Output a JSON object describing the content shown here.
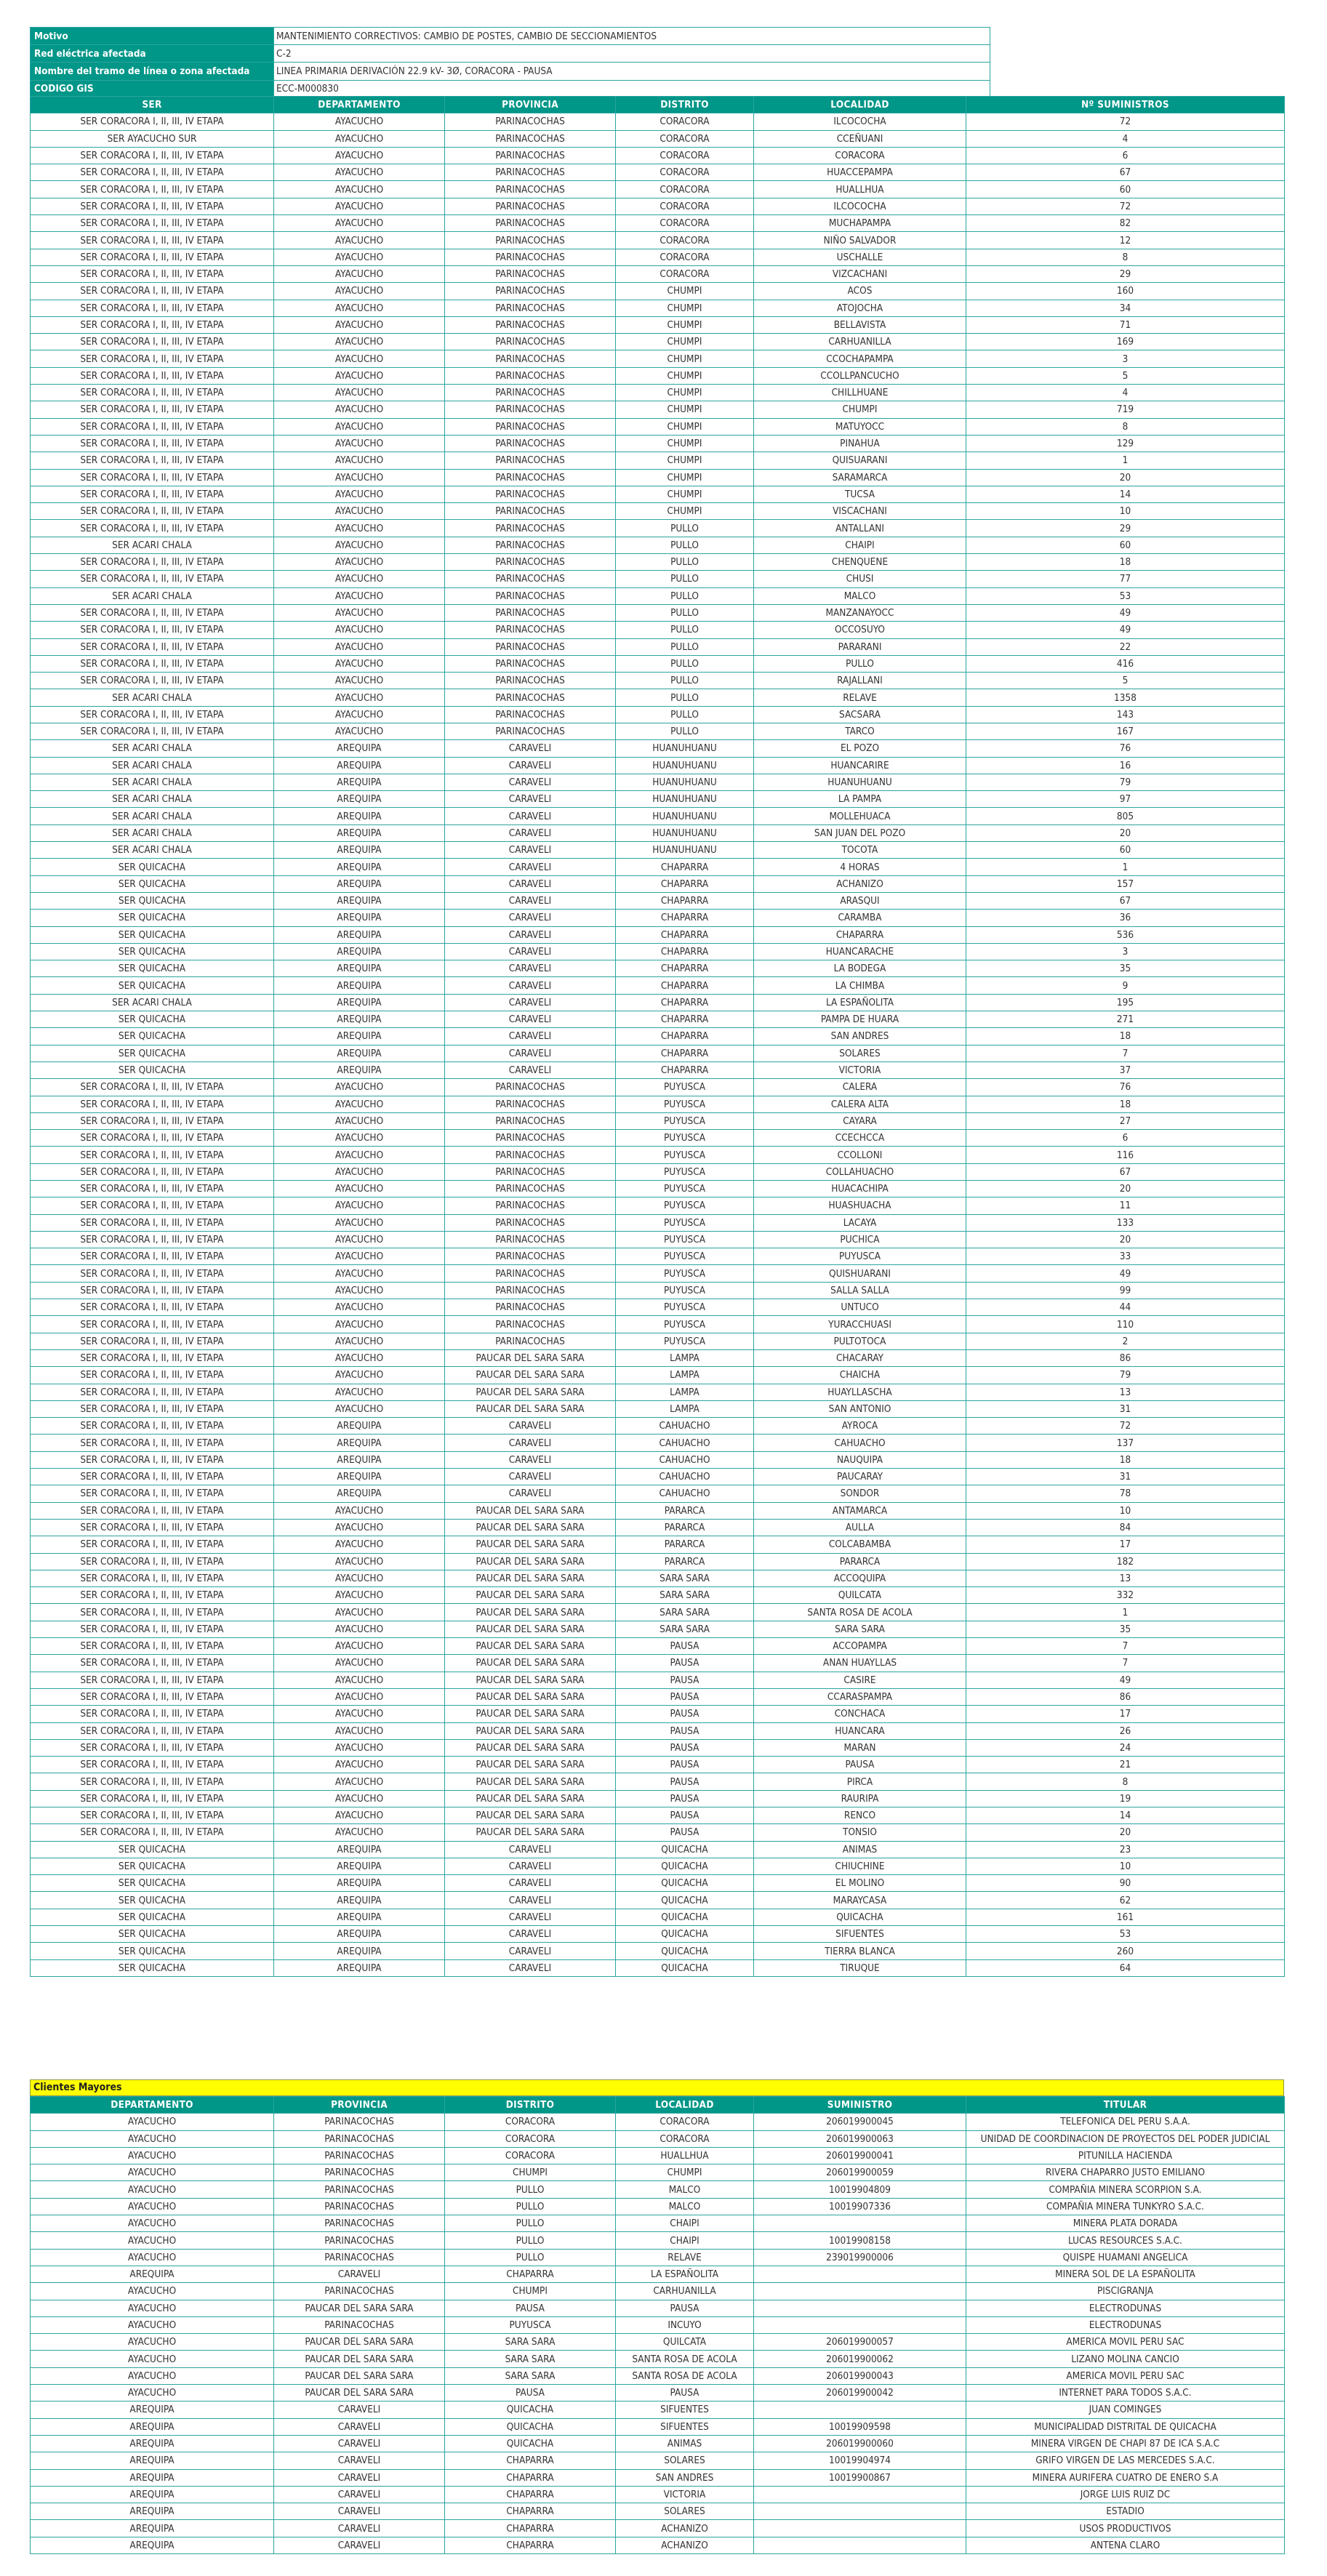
{
  "info": [
    {
      "label": "Motivo",
      "value": "MANTENIMIENTO CORRECTIVOS: CAMBIO DE POSTES, CAMBIO DE SECCIONAMIENTOS"
    },
    {
      "label": "Red eléctrica afectada",
      "value": "C-2"
    },
    {
      "label": "Nombre del tramo de línea o zona afectada",
      "value": "LINEA PRIMARIA DERIVACIÓN 22.9 kV- 3Ø, CORACORA - PAUSA"
    },
    {
      "label": "CODIGO GIS",
      "value": "ECC-M000830"
    }
  ],
  "main_headers": [
    "SER",
    "DEPARTAMENTO",
    "PROVINCIA",
    "DISTRITO",
    "LOCALIDAD",
    "Nº SUMINISTROS"
  ],
  "main_rows": [
    [
      "SER CORACORA I, II, III, IV ETAPA",
      "AYACUCHO",
      "PARINACOCHAS",
      "CORACORA",
      "ILCOCOCHA",
      "72"
    ],
    [
      "SER AYACUCHO SUR",
      "AYACUCHO",
      "PARINACOCHAS",
      "CORACORA",
      "CCEÑUANI",
      "4"
    ],
    [
      "SER CORACORA I, II, III, IV ETAPA",
      "AYACUCHO",
      "PARINACOCHAS",
      "CORACORA",
      "CORACORA",
      "6"
    ],
    [
      "SER CORACORA I, II, III, IV ETAPA",
      "AYACUCHO",
      "PARINACOCHAS",
      "CORACORA",
      "HUACCEPAMPA",
      "67"
    ],
    [
      "SER CORACORA I, II, III, IV ETAPA",
      "AYACUCHO",
      "PARINACOCHAS",
      "CORACORA",
      "HUALLHUA",
      "60"
    ],
    [
      "SER CORACORA I, II, III, IV ETAPA",
      "AYACUCHO",
      "PARINACOCHAS",
      "CORACORA",
      "ILCOCOCHA",
      "72"
    ],
    [
      "SER CORACORA I, II, III, IV ETAPA",
      "AYACUCHO",
      "PARINACOCHAS",
      "CORACORA",
      "MUCHAPAMPA",
      "82"
    ],
    [
      "SER CORACORA I, II, III, IV ETAPA",
      "AYACUCHO",
      "PARINACOCHAS",
      "CORACORA",
      "NIÑO SALVADOR",
      "12"
    ],
    [
      "SER CORACORA I, II, III, IV ETAPA",
      "AYACUCHO",
      "PARINACOCHAS",
      "CORACORA",
      "USCHALLE",
      "8"
    ],
    [
      "SER CORACORA I, II, III, IV ETAPA",
      "AYACUCHO",
      "PARINACOCHAS",
      "CORACORA",
      "VIZCACHANI",
      "29"
    ],
    [
      "SER CORACORA I, II, III, IV ETAPA",
      "AYACUCHO",
      "PARINACOCHAS",
      "CHUMPI",
      "ACOS",
      "160"
    ],
    [
      "SER CORACORA I, II, III, IV ETAPA",
      "AYACUCHO",
      "PARINACOCHAS",
      "CHUMPI",
      "ATOJOCHA",
      "34"
    ],
    [
      "SER CORACORA I, II, III, IV ETAPA",
      "AYACUCHO",
      "PARINACOCHAS",
      "CHUMPI",
      "BELLAVISTA",
      "71"
    ],
    [
      "SER CORACORA I, II, III, IV ETAPA",
      "AYACUCHO",
      "PARINACOCHAS",
      "CHUMPI",
      "CARHUANILLA",
      "169"
    ],
    [
      "SER CORACORA I, II, III, IV ETAPA",
      "AYACUCHO",
      "PARINACOCHAS",
      "CHUMPI",
      "CCOCHAPAMPA",
      "3"
    ],
    [
      "SER CORACORA I, II, III, IV ETAPA",
      "AYACUCHO",
      "PARINACOCHAS",
      "CHUMPI",
      "CCOLLPANCUCHO",
      "5"
    ],
    [
      "SER CORACORA I, II, III, IV ETAPA",
      "AYACUCHO",
      "PARINACOCHAS",
      "CHUMPI",
      "CHILLHUANE",
      "4"
    ],
    [
      "SER CORACORA I, II, III, IV ETAPA",
      "AYACUCHO",
      "PARINACOCHAS",
      "CHUMPI",
      "CHUMPI",
      "719"
    ],
    [
      "SER CORACORA I, II, III, IV ETAPA",
      "AYACUCHO",
      "PARINACOCHAS",
      "CHUMPI",
      "MATUYOCC",
      "8"
    ],
    [
      "SER CORACORA I, II, III, IV ETAPA",
      "AYACUCHO",
      "PARINACOCHAS",
      "CHUMPI",
      "PINAHUA",
      "129"
    ],
    [
      "SER CORACORA I, II, III, IV ETAPA",
      "AYACUCHO",
      "PARINACOCHAS",
      "CHUMPI",
      "QUISUARANI",
      "1"
    ],
    [
      "SER CORACORA I, II, III, IV ETAPA",
      "AYACUCHO",
      "PARINACOCHAS",
      "CHUMPI",
      "SARAMARCA",
      "20"
    ],
    [
      "SER CORACORA I, II, III, IV ETAPA",
      "AYACUCHO",
      "PARINACOCHAS",
      "CHUMPI",
      "TUCSA",
      "14"
    ],
    [
      "SER CORACORA I, II, III, IV ETAPA",
      "AYACUCHO",
      "PARINACOCHAS",
      "CHUMPI",
      "VISCACHANI",
      "10"
    ],
    [
      "SER CORACORA I, II, III, IV ETAPA",
      "AYACUCHO",
      "PARINACOCHAS",
      "PULLO",
      "ANTALLANI",
      "29"
    ],
    [
      "SER ACARI CHALA",
      "AYACUCHO",
      "PARINACOCHAS",
      "PULLO",
      "CHAIPI",
      "60"
    ],
    [
      "SER CORACORA I, II, III, IV ETAPA",
      "AYACUCHO",
      "PARINACOCHAS",
      "PULLO",
      "CHENQUENE",
      "18"
    ],
    [
      "SER CORACORA I, II, III, IV ETAPA",
      "AYACUCHO",
      "PARINACOCHAS",
      "PULLO",
      "CHUSI",
      "77"
    ],
    [
      "SER ACARI CHALA",
      "AYACUCHO",
      "PARINACOCHAS",
      "PULLO",
      "MALCO",
      "53"
    ],
    [
      "SER CORACORA I, II, III, IV ETAPA",
      "AYACUCHO",
      "PARINACOCHAS",
      "PULLO",
      "MANZANAYOCC",
      "49"
    ],
    [
      "SER CORACORA I, II, III, IV ETAPA",
      "AYACUCHO",
      "PARINACOCHAS",
      "PULLO",
      "OCCOSUYO",
      "49"
    ],
    [
      "SER CORACORA I, II, III, IV ETAPA",
      "AYACUCHO",
      "PARINACOCHAS",
      "PULLO",
      "PARARANI",
      "22"
    ],
    [
      "SER CORACORA I, II, III, IV ETAPA",
      "AYACUCHO",
      "PARINACOCHAS",
      "PULLO",
      "PULLO",
      "416"
    ],
    [
      "SER CORACORA I, II, III, IV ETAPA",
      "AYACUCHO",
      "PARINACOCHAS",
      "PULLO",
      "RAJALLANI",
      "5"
    ],
    [
      "SER ACARI CHALA",
      "AYACUCHO",
      "PARINACOCHAS",
      "PULLO",
      "RELAVE",
      "1358"
    ],
    [
      "SER CORACORA I, II, III, IV ETAPA",
      "AYACUCHO",
      "PARINACOCHAS",
      "PULLO",
      "SACSARA",
      "143"
    ],
    [
      "SER CORACORA I, II, III, IV ETAPA",
      "AYACUCHO",
      "PARINACOCHAS",
      "PULLO",
      "TARCO",
      "167"
    ],
    [
      "SER ACARI CHALA",
      "AREQUIPA",
      "CARAVELI",
      "HUANUHUANU",
      "EL POZO",
      "76"
    ],
    [
      "SER ACARI CHALA",
      "AREQUIPA",
      "CARAVELI",
      "HUANUHUANU",
      "HUANCARIRE",
      "16"
    ],
    [
      "SER ACARI CHALA",
      "AREQUIPA",
      "CARAVELI",
      "HUANUHUANU",
      "HUANUHUANU",
      "79"
    ],
    [
      "SER ACARI CHALA",
      "AREQUIPA",
      "CARAVELI",
      "HUANUHUANU",
      "LA PAMPA",
      "97"
    ],
    [
      "SER ACARI CHALA",
      "AREQUIPA",
      "CARAVELI",
      "HUANUHUANU",
      "MOLLEHUACA",
      "805"
    ],
    [
      "SER ACARI CHALA",
      "AREQUIPA",
      "CARAVELI",
      "HUANUHUANU",
      "SAN JUAN DEL POZO",
      "20"
    ],
    [
      "SER ACARI CHALA",
      "AREQUIPA",
      "CARAVELI",
      "HUANUHUANU",
      "TOCOTA",
      "60"
    ],
    [
      "SER QUICACHA",
      "AREQUIPA",
      "CARAVELI",
      "CHAPARRA",
      "4 HORAS",
      "1"
    ],
    [
      "SER QUICACHA",
      "AREQUIPA",
      "CARAVELI",
      "CHAPARRA",
      "ACHANIZO",
      "157"
    ],
    [
      "SER QUICACHA",
      "AREQUIPA",
      "CARAVELI",
      "CHAPARRA",
      "ARASQUI",
      "67"
    ],
    [
      "SER QUICACHA",
      "AREQUIPA",
      "CARAVELI",
      "CHAPARRA",
      "CARAMBA",
      "36"
    ],
    [
      "SER QUICACHA",
      "AREQUIPA",
      "CARAVELI",
      "CHAPARRA",
      "CHAPARRA",
      "536"
    ],
    [
      "SER QUICACHA",
      "AREQUIPA",
      "CARAVELI",
      "CHAPARRA",
      "HUANCARACHE",
      "3"
    ],
    [
      "SER QUICACHA",
      "AREQUIPA",
      "CARAVELI",
      "CHAPARRA",
      "LA BODEGA",
      "35"
    ],
    [
      "SER QUICACHA",
      "AREQUIPA",
      "CARAVELI",
      "CHAPARRA",
      "LA CHIMBA",
      "9"
    ],
    [
      "SER ACARI CHALA",
      "AREQUIPA",
      "CARAVELI",
      "CHAPARRA",
      "LA ESPAÑOLITA",
      "195"
    ],
    [
      "SER QUICACHA",
      "AREQUIPA",
      "CARAVELI",
      "CHAPARRA",
      "PAMPA DE HUARA",
      "271"
    ],
    [
      "SER QUICACHA",
      "AREQUIPA",
      "CARAVELI",
      "CHAPARRA",
      "SAN ANDRES",
      "18"
    ],
    [
      "SER QUICACHA",
      "AREQUIPA",
      "CARAVELI",
      "CHAPARRA",
      "SOLARES",
      "7"
    ],
    [
      "SER QUICACHA",
      "AREQUIPA",
      "CARAVELI",
      "CHAPARRA",
      "VICTORIA",
      "37"
    ],
    [
      "SER CORACORA I, II, III, IV ETAPA",
      "AYACUCHO",
      "PARINACOCHAS",
      "PUYUSCA",
      "CALERA",
      "76"
    ],
    [
      "SER CORACORA I, II, III, IV ETAPA",
      "AYACUCHO",
      "PARINACOCHAS",
      "PUYUSCA",
      "CALERA ALTA",
      "18"
    ],
    [
      "SER CORACORA I, II, III, IV ETAPA",
      "AYACUCHO",
      "PARINACOCHAS",
      "PUYUSCA",
      "CAYARA",
      "27"
    ],
    [
      "SER CORACORA I, II, III, IV ETAPA",
      "AYACUCHO",
      "PARINACOCHAS",
      "PUYUSCA",
      "CCECHCCA",
      "6"
    ],
    [
      "SER CORACORA I, II, III, IV ETAPA",
      "AYACUCHO",
      "PARINACOCHAS",
      "PUYUSCA",
      "CCOLLONI",
      "116"
    ],
    [
      "SER CORACORA I, II, III, IV ETAPA",
      "AYACUCHO",
      "PARINACOCHAS",
      "PUYUSCA",
      "COLLAHUACHO",
      "67"
    ],
    [
      "SER CORACORA I, II, III, IV ETAPA",
      "AYACUCHO",
      "PARINACOCHAS",
      "PUYUSCA",
      "HUACACHIPA",
      "20"
    ],
    [
      "SER CORACORA I, II, III, IV ETAPA",
      "AYACUCHO",
      "PARINACOCHAS",
      "PUYUSCA",
      "HUASHUACHA",
      "11"
    ],
    [
      "SER CORACORA I, II, III, IV ETAPA",
      "AYACUCHO",
      "PARINACOCHAS",
      "PUYUSCA",
      "LACAYA",
      "133"
    ],
    [
      "SER CORACORA I, II, III, IV ETAPA",
      "AYACUCHO",
      "PARINACOCHAS",
      "PUYUSCA",
      "PUCHICA",
      "20"
    ],
    [
      "SER CORACORA I, II, III, IV ETAPA",
      "AYACUCHO",
      "PARINACOCHAS",
      "PUYUSCA",
      "PUYUSCA",
      "33"
    ],
    [
      "SER CORACORA I, II, III, IV ETAPA",
      "AYACUCHO",
      "PARINACOCHAS",
      "PUYUSCA",
      "QUISHUARANI",
      "49"
    ],
    [
      "SER CORACORA I, II, III, IV ETAPA",
      "AYACUCHO",
      "PARINACOCHAS",
      "PUYUSCA",
      "SALLA SALLA",
      "99"
    ],
    [
      "SER CORACORA I, II, III, IV ETAPA",
      "AYACUCHO",
      "PARINACOCHAS",
      "PUYUSCA",
      "UNTUCO",
      "44"
    ],
    [
      "SER CORACORA I, II, III, IV ETAPA",
      "AYACUCHO",
      "PARINACOCHAS",
      "PUYUSCA",
      "YURACCHUASI",
      "110"
    ],
    [
      "SER CORACORA I, II, III, IV ETAPA",
      "AYACUCHO",
      "PARINACOCHAS",
      "PUYUSCA",
      "PULTOTOCA",
      "2"
    ],
    [
      "SER CORACORA I, II, III, IV ETAPA",
      "AYACUCHO",
      "PAUCAR DEL SARA SARA",
      "LAMPA",
      "CHACARAY",
      "86"
    ],
    [
      "SER CORACORA I, II, III, IV ETAPA",
      "AYACUCHO",
      "PAUCAR DEL SARA SARA",
      "LAMPA",
      "CHAICHA",
      "79"
    ],
    [
      "SER CORACORA I, II, III, IV ETAPA",
      "AYACUCHO",
      "PAUCAR DEL SARA SARA",
      "LAMPA",
      "HUAYLLASCHA",
      "13"
    ],
    [
      "SER CORACORA I, II, III, IV ETAPA",
      "AYACUCHO",
      "PAUCAR DEL SARA SARA",
      "LAMPA",
      "SAN ANTONIO",
      "31"
    ],
    [
      "SER CORACORA I, II, III, IV ETAPA",
      "AREQUIPA",
      "CARAVELI",
      "CAHUACHO",
      "AYROCA",
      "72"
    ],
    [
      "SER CORACORA I, II, III, IV ETAPA",
      "AREQUIPA",
      "CARAVELI",
      "CAHUACHO",
      "CAHUACHO",
      "137"
    ],
    [
      "SER CORACORA I, II, III, IV ETAPA",
      "AREQUIPA",
      "CARAVELI",
      "CAHUACHO",
      "NAUQUIPA",
      "18"
    ],
    [
      "SER CORACORA I, II, III, IV ETAPA",
      "AREQUIPA",
      "CARAVELI",
      "CAHUACHO",
      "PAUCARAY",
      "31"
    ],
    [
      "SER CORACORA I, II, III, IV ETAPA",
      "AREQUIPA",
      "CARAVELI",
      "CAHUACHO",
      "SONDOR",
      "78"
    ],
    [
      "SER CORACORA I, II, III, IV ETAPA",
      "AYACUCHO",
      "PAUCAR DEL SARA SARA",
      "PARARCA",
      "ANTAMARCA",
      "10"
    ],
    [
      "SER CORACORA I, II, III, IV ETAPA",
      "AYACUCHO",
      "PAUCAR DEL SARA SARA",
      "PARARCA",
      "AULLA",
      "84"
    ],
    [
      "SER CORACORA I, II, III, IV ETAPA",
      "AYACUCHO",
      "PAUCAR DEL SARA SARA",
      "PARARCA",
      "COLCABAMBA",
      "17"
    ],
    [
      "SER CORACORA I, II, III, IV ETAPA",
      "AYACUCHO",
      "PAUCAR DEL SARA SARA",
      "PARARCA",
      "PARARCA",
      "182"
    ],
    [
      "SER CORACORA I, II, III, IV ETAPA",
      "AYACUCHO",
      "PAUCAR DEL SARA SARA",
      "SARA SARA",
      "ACCOQUIPA",
      "13"
    ],
    [
      "SER CORACORA I, II, III, IV ETAPA",
      "AYACUCHO",
      "PAUCAR DEL SARA SARA",
      "SARA SARA",
      "QUILCATA",
      "332"
    ],
    [
      "SER CORACORA I, II, III, IV ETAPA",
      "AYACUCHO",
      "PAUCAR DEL SARA SARA",
      "SARA SARA",
      "SANTA ROSA DE ACOLA",
      "1"
    ],
    [
      "SER CORACORA I, II, III, IV ETAPA",
      "AYACUCHO",
      "PAUCAR DEL SARA SARA",
      "SARA SARA",
      "SARA SARA",
      "35"
    ],
    [
      "SER CORACORA I, II, III, IV ETAPA",
      "AYACUCHO",
      "PAUCAR DEL SARA SARA",
      "PAUSA",
      "ACCOPAMPA",
      "7"
    ],
    [
      "SER CORACORA I, II, III, IV ETAPA",
      "AYACUCHO",
      "PAUCAR DEL SARA SARA",
      "PAUSA",
      "ANAN HUAYLLAS",
      "7"
    ],
    [
      "SER CORACORA I, II, III, IV ETAPA",
      "AYACUCHO",
      "PAUCAR DEL SARA SARA",
      "PAUSA",
      "CASIRE",
      "49"
    ],
    [
      "SER CORACORA I, II, III, IV ETAPA",
      "AYACUCHO",
      "PAUCAR DEL SARA SARA",
      "PAUSA",
      "CCARASPAMPA",
      "86"
    ],
    [
      "SER CORACORA I, II, III, IV ETAPA",
      "AYACUCHO",
      "PAUCAR DEL SARA SARA",
      "PAUSA",
      "CONCHACA",
      "17"
    ],
    [
      "SER CORACORA I, II, III, IV ETAPA",
      "AYACUCHO",
      "PAUCAR DEL SARA SARA",
      "PAUSA",
      "HUANCARA",
      "26"
    ],
    [
      "SER CORACORA I, II, III, IV ETAPA",
      "AYACUCHO",
      "PAUCAR DEL SARA SARA",
      "PAUSA",
      "MARAN",
      "24"
    ],
    [
      "SER CORACORA I, II, III, IV ETAPA",
      "AYACUCHO",
      "PAUCAR DEL SARA SARA",
      "PAUSA",
      "PAUSA",
      "21"
    ],
    [
      "SER CORACORA I, II, III, IV ETAPA",
      "AYACUCHO",
      "PAUCAR DEL SARA SARA",
      "PAUSA",
      "PIRCA",
      "8"
    ],
    [
      "SER CORACORA I, II, III, IV ETAPA",
      "AYACUCHO",
      "PAUCAR DEL SARA SARA",
      "PAUSA",
      "RAURIPA",
      "19"
    ],
    [
      "SER CORACORA I, II, III, IV ETAPA",
      "AYACUCHO",
      "PAUCAR DEL SARA SARA",
      "PAUSA",
      "RENCO",
      "14"
    ],
    [
      "SER CORACORA I, II, III, IV ETAPA",
      "AYACUCHO",
      "PAUCAR DEL SARA SARA",
      "PAUSA",
      "TONSIO",
      "20"
    ],
    [
      "SER QUICACHA",
      "AREQUIPA",
      "CARAVELI",
      "QUICACHA",
      "ANIMAS",
      "23"
    ],
    [
      "SER QUICACHA",
      "AREQUIPA",
      "CARAVELI",
      "QUICACHA",
      "CHIUCHINE",
      "10"
    ],
    [
      "SER QUICACHA",
      "AREQUIPA",
      "CARAVELI",
      "QUICACHA",
      "EL MOLINO",
      "90"
    ],
    [
      "SER QUICACHA",
      "AREQUIPA",
      "CARAVELI",
      "QUICACHA",
      "MARAYCASA",
      "62"
    ],
    [
      "SER QUICACHA",
      "AREQUIPA",
      "CARAVELI",
      "QUICACHA",
      "QUICACHA",
      "161"
    ],
    [
      "SER QUICACHA",
      "AREQUIPA",
      "CARAVELI",
      "QUICACHA",
      "SIFUENTES",
      "53"
    ],
    [
      "SER QUICACHA",
      "AREQUIPA",
      "CARAVELI",
      "QUICACHA",
      "TIERRA BLANCA",
      "260"
    ],
    [
      "SER QUICACHA",
      "AREQUIPA",
      "CARAVELI",
      "QUICACHA",
      "TIRUQUE",
      "64"
    ]
  ],
  "clientes_title": "Clientes Mayores",
  "clientes_headers": [
    "DEPARTAMENTO",
    "PROVINCIA",
    "DISTRITO",
    "LOCALIDAD",
    "SUMINISTRO",
    "TITULAR"
  ],
  "clientes_rows": [
    [
      "AYACUCHO",
      "PARINACOCHAS",
      "CORACORA",
      "CORACORA",
      "206019900045",
      "TELEFONICA DEL PERU S.A.A."
    ],
    [
      "AYACUCHO",
      "PARINACOCHAS",
      "CORACORA",
      "CORACORA",
      "206019900063",
      "UNIDAD DE COORDINACION DE PROYECTOS DEL PODER JUDICIAL"
    ],
    [
      "AYACUCHO",
      "PARINACOCHAS",
      "CORACORA",
      "HUALLHUA",
      "206019900041",
      "PITUNILLA HACIENDA"
    ],
    [
      "AYACUCHO",
      "PARINACOCHAS",
      "CHUMPI",
      "CHUMPI",
      "206019900059",
      "RIVERA CHAPARRO JUSTO EMILIANO"
    ],
    [
      "AYACUCHO",
      "PARINACOCHAS",
      "PULLO",
      "MALCO",
      "10019904809",
      "COMPAÑIA MINERA SCORPION S.A."
    ],
    [
      "AYACUCHO",
      "PARINACOCHAS",
      "PULLO",
      "MALCO",
      "10019907336",
      "COMPAÑIA MINERA TUNKYRO S.A.C."
    ],
    [
      "AYACUCHO",
      "PARINACOCHAS",
      "PULLO",
      "CHAIPI",
      "",
      "MINERA PLATA DORADA"
    ],
    [
      "AYACUCHO",
      "PARINACOCHAS",
      "PULLO",
      "CHAIPI",
      "10019908158",
      "LUCAS RESOURCES S.A.C."
    ],
    [
      "AYACUCHO",
      "PARINACOCHAS",
      "PULLO",
      "RELAVE",
      "239019900006",
      "QUISPE HUAMANI ANGELICA"
    ],
    [
      "AREQUIPA",
      "CARAVELI",
      "CHAPARRA",
      "LA ESPAÑOLITA",
      "",
      "MINERA SOL DE LA ESPAÑOLITA"
    ],
    [
      "AYACUCHO",
      "PARINACOCHAS",
      "CHUMPI",
      "CARHUANILLA",
      "",
      "PISCIGRANJA"
    ],
    [
      "AYACUCHO",
      "PAUCAR DEL SARA SARA",
      "PAUSA",
      "PAUSA",
      "",
      "ELECTRODUNAS"
    ],
    [
      "AYACUCHO",
      "PARINACOCHAS",
      "PUYUSCA",
      "INCUYO",
      "",
      "ELECTRODUNAS"
    ],
    [
      "AYACUCHO",
      "PAUCAR DEL SARA SARA",
      "SARA SARA",
      "QUILCATA",
      "206019900057",
      "AMERICA MOVIL PERU SAC"
    ],
    [
      "AYACUCHO",
      "PAUCAR DEL SARA SARA",
      "SARA SARA",
      "SANTA ROSA DE ACOLA",
      "206019900062",
      "LIZANO MOLINA CANCIO"
    ],
    [
      "AYACUCHO",
      "PAUCAR DEL SARA SARA",
      "SARA SARA",
      "SANTA ROSA DE ACOLA",
      "206019900043",
      "AMERICA MOVIL PERU SAC"
    ],
    [
      "AYACUCHO",
      "PAUCAR DEL SARA SARA",
      "PAUSA",
      "PAUSA",
      "206019900042",
      "INTERNET PARA TODOS S.A.C."
    ],
    [
      "AREQUIPA",
      "CARAVELI",
      "QUICACHA",
      "SIFUENTES",
      "",
      "JUAN COMINGES"
    ],
    [
      "AREQUIPA",
      "CARAVELI",
      "QUICACHA",
      "SIFUENTES",
      "10019909598",
      "MUNICIPALIDAD DISTRITAL DE QUICACHA"
    ],
    [
      "AREQUIPA",
      "CARAVELI",
      "QUICACHA",
      "ANIMAS",
      "206019900060",
      "MINERA VIRGEN DE CHAPI 87 DE ICA S.A.C"
    ],
    [
      "AREQUIPA",
      "CARAVELI",
      "CHAPARRA",
      "SOLARES",
      "10019904974",
      "GRIFO VIRGEN DE LAS MERCEDES S.A.C."
    ],
    [
      "AREQUIPA",
      "CARAVELI",
      "CHAPARRA",
      "SAN ANDRES",
      "10019900867",
      "MINERA AURIFERA CUATRO DE ENERO S.A"
    ],
    [
      "AREQUIPA",
      "CARAVELI",
      "CHAPARRA",
      "VICTORIA",
      "",
      "JORGE LUIS RUIZ DC"
    ],
    [
      "AREQUIPA",
      "CARAVELI",
      "CHAPARRA",
      "SOLARES",
      "",
      "ESTADIO"
    ],
    [
      "AREQUIPA",
      "CARAVELI",
      "CHAPARRA",
      "ACHANIZO",
      "",
      "USOS PRODUCTIVOS"
    ],
    [
      "AREQUIPA",
      "CARAVELI",
      "CHAPARRA",
      "ACHANIZO",
      "",
      "ANTENA CLARO"
    ]
  ]
}
